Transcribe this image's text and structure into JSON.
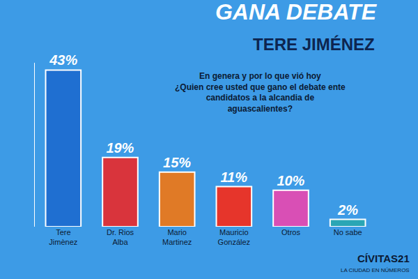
{
  "chart_data": {
    "type": "bar",
    "title": "GANA DEBATE",
    "subtitle": "TERE JIMÉNEZ",
    "annotations": [
      "En genera y por lo que vió hoy",
      "¿Quien cree usted que gano el debate ente candidatos a la alcandia de aguascalientes?"
    ],
    "categories": [
      "Tere Jimènez",
      "Dr. Rios Alba",
      "Mario Martinez",
      "Mauricio González",
      "Otros",
      "No sabe"
    ],
    "values": [
      43,
      19,
      15,
      11,
      10,
      2
    ],
    "value_labels": [
      "43%",
      "19%",
      "15%",
      "11%",
      "10%",
      "2%"
    ],
    "colors": [
      "#1f6fd1",
      "#d9343c",
      "#e07a26",
      "#e6352b",
      "#d94fb5",
      "#2aa6b5"
    ],
    "ylim": [
      0,
      45
    ],
    "yticks": [],
    "grid": false,
    "data_labels": true,
    "tick_labels": "x",
    "source": [
      "CÍVITAS21",
      "LA CIUDAD EN NÚMEROS"
    ]
  }
}
